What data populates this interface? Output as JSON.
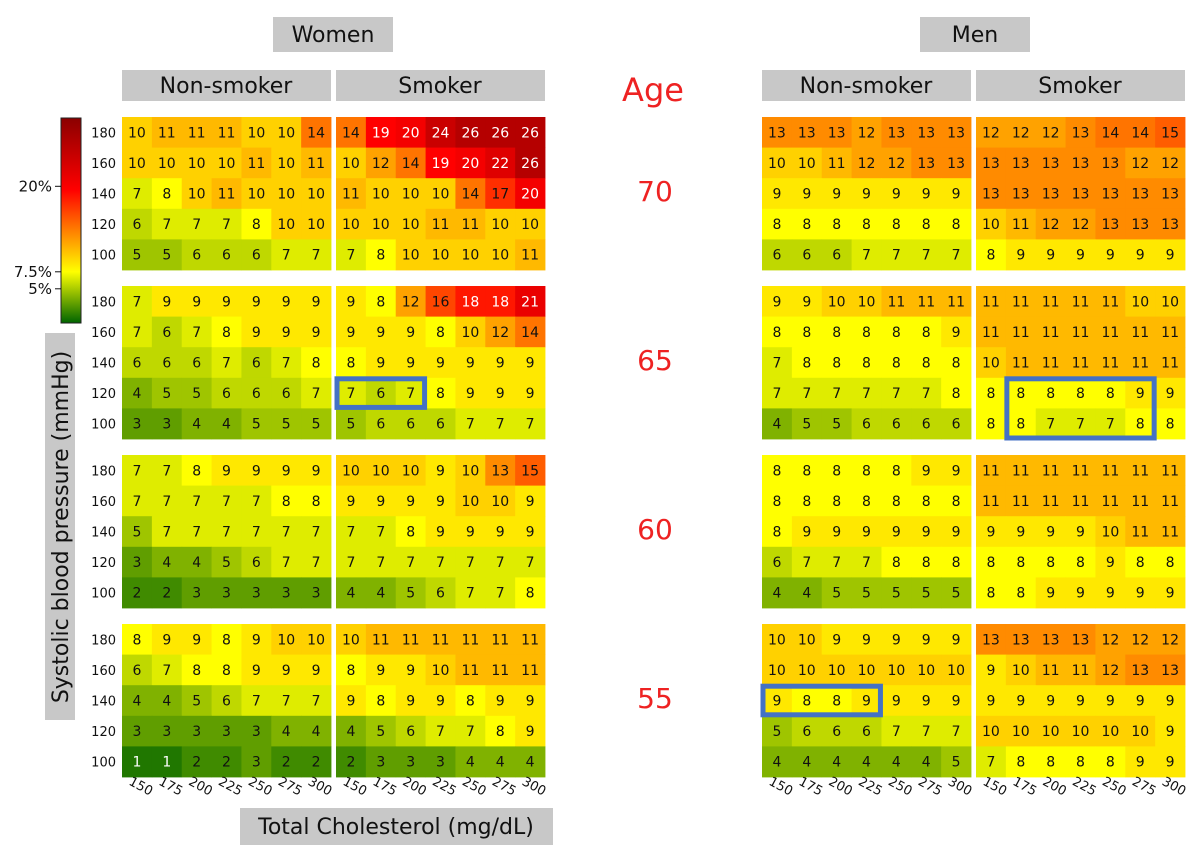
{
  "chart_data": {
    "type": "heatmap",
    "sex_labels": [
      "Women",
      "Men"
    ],
    "smoking_labels": [
      "Non-smoker",
      "Smoker"
    ],
    "age_title": "Age",
    "ages": [
      70,
      65,
      60,
      55
    ],
    "xlabel": "Total Cholesterol (mg/dL)",
    "ylabel": "Systolic blood pressure (mmHg)",
    "x_ticks": [
      150,
      175,
      200,
      225,
      250,
      275,
      300
    ],
    "y_ticks": [
      180,
      160,
      140,
      120,
      100
    ],
    "colorbar": {
      "ticks": [
        {
          "label": "20%",
          "value": 20
        },
        {
          "label": "7.5%",
          "value": 7.5
        },
        {
          "label": "5%",
          "value": 5
        }
      ],
      "min": 0,
      "max": 30,
      "colors": [
        "#006400",
        "#ffff00",
        "#ff0000",
        "#8b0000"
      ]
    },
    "highlight_color": "#4472c4",
    "panels": [
      {
        "sex": "Women",
        "smoking": "Non-smoker",
        "age": 70,
        "values": [
          [
            10,
            11,
            11,
            11,
            10,
            10,
            14
          ],
          [
            10,
            10,
            10,
            10,
            11,
            10,
            11
          ],
          [
            7,
            8,
            10,
            11,
            10,
            10,
            10
          ],
          [
            6,
            7,
            7,
            7,
            8,
            10,
            10
          ],
          [
            5,
            5,
            6,
            6,
            6,
            7,
            7
          ]
        ]
      },
      {
        "sex": "Women",
        "smoking": "Smoker",
        "age": 70,
        "values": [
          [
            14,
            19,
            20,
            24,
            26,
            26,
            26
          ],
          [
            10,
            12,
            14,
            19,
            20,
            22,
            26
          ],
          [
            11,
            10,
            10,
            10,
            14,
            17,
            20
          ],
          [
            10,
            10,
            10,
            11,
            11,
            10,
            10
          ],
          [
            7,
            8,
            10,
            10,
            10,
            10,
            11
          ]
        ]
      },
      {
        "sex": "Men",
        "smoking": "Non-smoker",
        "age": 70,
        "values": [
          [
            13,
            13,
            13,
            12,
            13,
            13,
            13
          ],
          [
            10,
            10,
            11,
            12,
            12,
            13,
            13
          ],
          [
            9,
            9,
            9,
            9,
            9,
            9,
            9
          ],
          [
            8,
            8,
            8,
            8,
            8,
            8,
            8
          ],
          [
            6,
            6,
            6,
            7,
            7,
            7,
            7
          ]
        ]
      },
      {
        "sex": "Men",
        "smoking": "Smoker",
        "age": 70,
        "values": [
          [
            12,
            12,
            12,
            13,
            14,
            14,
            15
          ],
          [
            13,
            13,
            13,
            13,
            13,
            12,
            12
          ],
          [
            13,
            13,
            13,
            13,
            13,
            13,
            13
          ],
          [
            10,
            11,
            12,
            12,
            13,
            13,
            13
          ],
          [
            8,
            9,
            9,
            9,
            9,
            9,
            9
          ]
        ]
      },
      {
        "sex": "Women",
        "smoking": "Non-smoker",
        "age": 65,
        "values": [
          [
            7,
            9,
            9,
            9,
            9,
            9,
            9
          ],
          [
            7,
            6,
            7,
            8,
            9,
            9,
            9
          ],
          [
            6,
            6,
            6,
            7,
            6,
            7,
            8
          ],
          [
            4,
            5,
            5,
            6,
            6,
            6,
            7
          ],
          [
            3,
            3,
            4,
            4,
            5,
            5,
            5
          ]
        ]
      },
      {
        "sex": "Women",
        "smoking": "Smoker",
        "age": 65,
        "values": [
          [
            9,
            8,
            12,
            16,
            18,
            18,
            21
          ],
          [
            9,
            9,
            9,
            8,
            10,
            12,
            14
          ],
          [
            8,
            9,
            9,
            9,
            9,
            9,
            9
          ],
          [
            7,
            6,
            7,
            8,
            9,
            9,
            9
          ],
          [
            5,
            6,
            6,
            6,
            7,
            7,
            7
          ]
        ],
        "highlight": {
          "row": 3,
          "col_start": 0,
          "col_end": 2
        }
      },
      {
        "sex": "Men",
        "smoking": "Non-smoker",
        "age": 65,
        "values": [
          [
            9,
            9,
            10,
            10,
            11,
            11,
            11
          ],
          [
            8,
            8,
            8,
            8,
            8,
            8,
            9
          ],
          [
            7,
            8,
            8,
            8,
            8,
            8,
            8
          ],
          [
            7,
            7,
            7,
            7,
            7,
            7,
            8
          ],
          [
            4,
            5,
            5,
            6,
            6,
            6,
            6
          ]
        ]
      },
      {
        "sex": "Men",
        "smoking": "Smoker",
        "age": 65,
        "values": [
          [
            11,
            11,
            11,
            11,
            11,
            10,
            10
          ],
          [
            11,
            11,
            11,
            11,
            11,
            11,
            11
          ],
          [
            10,
            11,
            11,
            11,
            11,
            11,
            11
          ],
          [
            8,
            8,
            8,
            8,
            8,
            9,
            9
          ],
          [
            8,
            8,
            7,
            7,
            7,
            8,
            8
          ]
        ],
        "highlight": {
          "row_start": 3,
          "row_end": 4,
          "col_start": 1,
          "col_end": 5
        }
      },
      {
        "sex": "Women",
        "smoking": "Non-smoker",
        "age": 60,
        "values": [
          [
            7,
            7,
            8,
            9,
            9,
            9,
            9
          ],
          [
            7,
            7,
            7,
            7,
            7,
            8,
            8
          ],
          [
            5,
            7,
            7,
            7,
            7,
            7,
            7
          ],
          [
            3,
            4,
            4,
            5,
            6,
            7,
            7
          ],
          [
            2,
            2,
            3,
            3,
            3,
            3,
            3
          ]
        ]
      },
      {
        "sex": "Women",
        "smoking": "Smoker",
        "age": 60,
        "values": [
          [
            10,
            10,
            10,
            9,
            10,
            13,
            15
          ],
          [
            9,
            9,
            9,
            9,
            10,
            10,
            9
          ],
          [
            7,
            7,
            8,
            9,
            9,
            9,
            9
          ],
          [
            7,
            7,
            7,
            7,
            7,
            7,
            7
          ],
          [
            4,
            4,
            5,
            6,
            7,
            7,
            8
          ]
        ]
      },
      {
        "sex": "Men",
        "smoking": "Non-smoker",
        "age": 60,
        "values": [
          [
            8,
            8,
            8,
            8,
            8,
            9,
            9
          ],
          [
            8,
            8,
            8,
            8,
            8,
            8,
            8
          ],
          [
            8,
            9,
            9,
            9,
            9,
            9,
            9
          ],
          [
            6,
            7,
            7,
            7,
            8,
            8,
            8
          ],
          [
            4,
            4,
            5,
            5,
            5,
            5,
            5
          ]
        ]
      },
      {
        "sex": "Men",
        "smoking": "Smoker",
        "age": 60,
        "values": [
          [
            11,
            11,
            11,
            11,
            11,
            11,
            11
          ],
          [
            11,
            11,
            11,
            11,
            11,
            11,
            11
          ],
          [
            9,
            9,
            9,
            9,
            10,
            11,
            11
          ],
          [
            8,
            8,
            8,
            8,
            9,
            8,
            8
          ],
          [
            8,
            8,
            9,
            9,
            9,
            9,
            9
          ]
        ]
      },
      {
        "sex": "Women",
        "smoking": "Non-smoker",
        "age": 55,
        "values": [
          [
            8,
            9,
            9,
            8,
            9,
            10,
            10
          ],
          [
            6,
            7,
            8,
            8,
            9,
            9,
            9
          ],
          [
            4,
            4,
            5,
            6,
            7,
            7,
            7
          ],
          [
            3,
            3,
            3,
            3,
            3,
            4,
            4
          ],
          [
            1,
            1,
            2,
            2,
            3,
            2,
            2
          ]
        ]
      },
      {
        "sex": "Women",
        "smoking": "Smoker",
        "age": 55,
        "values": [
          [
            10,
            11,
            11,
            11,
            11,
            11,
            11
          ],
          [
            8,
            9,
            9,
            10,
            11,
            11,
            11
          ],
          [
            9,
            8,
            9,
            9,
            8,
            9,
            9
          ],
          [
            4,
            5,
            6,
            7,
            7,
            8,
            9
          ],
          [
            2,
            3,
            3,
            3,
            4,
            4,
            4
          ]
        ]
      },
      {
        "sex": "Men",
        "smoking": "Non-smoker",
        "age": 55,
        "values": [
          [
            10,
            10,
            9,
            9,
            9,
            9,
            9
          ],
          [
            10,
            10,
            10,
            10,
            10,
            10,
            10
          ],
          [
            9,
            8,
            8,
            9,
            9,
            9,
            9
          ],
          [
            5,
            6,
            6,
            6,
            7,
            7,
            7
          ],
          [
            4,
            4,
            4,
            4,
            4,
            4,
            5
          ]
        ],
        "highlight": {
          "row": 2,
          "col_start": 0,
          "col_end": 3
        }
      },
      {
        "sex": "Men",
        "smoking": "Smoker",
        "age": 55,
        "values": [
          [
            13,
            13,
            13,
            13,
            12,
            12,
            12
          ],
          [
            9,
            10,
            11,
            11,
            12,
            13,
            13
          ],
          [
            9,
            9,
            9,
            9,
            9,
            9,
            9
          ],
          [
            10,
            10,
            10,
            10,
            10,
            10,
            9
          ],
          [
            7,
            8,
            8,
            8,
            8,
            9,
            9
          ]
        ]
      }
    ]
  }
}
